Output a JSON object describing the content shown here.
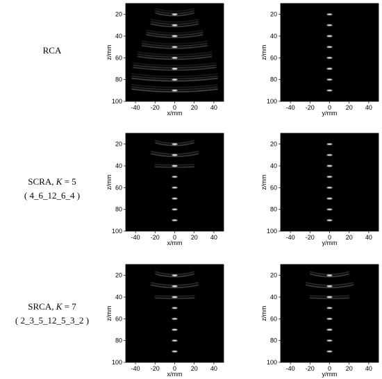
{
  "rows": [
    {
      "method": "RCA",
      "k_label": "",
      "k_value": "",
      "config": ""
    },
    {
      "method": "SCRA, ",
      "k_label": "K",
      "k_value": " = 5",
      "config": "( 4_6_12_6_4 )"
    },
    {
      "method": "SRCA, ",
      "k_label": "K",
      "k_value": " = 7",
      "config": "( 2_3_5_12_5_3_2 )"
    }
  ],
  "chart_data": [
    {
      "type": "heatmap",
      "panel": "RCA x-z",
      "xlabel": "x/mm",
      "ylabel": "z/mm",
      "xlim": [
        -50,
        50
      ],
      "ylim": [
        100,
        10
      ],
      "x_ticks": [
        -40,
        -20,
        0,
        20,
        40
      ],
      "y_ticks": [
        20,
        40,
        60,
        80,
        100
      ],
      "colormap": "gray",
      "background": "black",
      "focal_points_z": [
        20,
        30,
        40,
        50,
        60,
        70,
        80,
        90
      ],
      "image_pattern": "curved arc sidelobes at every depth"
    },
    {
      "type": "heatmap",
      "panel": "RCA y-z",
      "xlabel": "y/mm",
      "ylabel": "z/mm",
      "xlim": [
        -50,
        50
      ],
      "ylim": [
        100,
        10
      ],
      "x_ticks": [
        -40,
        -20,
        0,
        20,
        40
      ],
      "y_ticks": [
        20,
        40,
        60,
        80,
        100
      ],
      "colormap": "gray",
      "background": "black",
      "focal_points_z": [
        20,
        30,
        40,
        50,
        60,
        70,
        80,
        90
      ],
      "image_pattern": "compact points"
    },
    {
      "type": "heatmap",
      "panel": "SCRA K=5 x-z",
      "xlabel": "x/mm",
      "ylabel": "z/mm",
      "xlim": [
        -50,
        50
      ],
      "ylim": [
        100,
        10
      ],
      "x_ticks": [
        -40,
        -20,
        0,
        20,
        40
      ],
      "y_ticks": [
        20,
        40,
        60,
        80,
        100
      ],
      "colormap": "gray",
      "background": "black",
      "focal_points_z": [
        20,
        30,
        40,
        50,
        60,
        70,
        80,
        90
      ],
      "image_pattern": "arcs only at shallow depths"
    },
    {
      "type": "heatmap",
      "panel": "SCRA K=5 y-z",
      "xlabel": "y/mm",
      "ylabel": "z/mm",
      "xlim": [
        -50,
        50
      ],
      "ylim": [
        100,
        10
      ],
      "x_ticks": [
        -40,
        -20,
        0,
        20,
        40
      ],
      "y_ticks": [
        20,
        40,
        60,
        80,
        100
      ],
      "colormap": "gray",
      "background": "black",
      "focal_points_z": [
        20,
        30,
        40,
        50,
        60,
        70,
        80,
        90
      ],
      "image_pattern": "compact points"
    },
    {
      "type": "heatmap",
      "panel": "SRCA K=7 x-z",
      "xlabel": "x/mm",
      "ylabel": "z/mm",
      "xlim": [
        -50,
        50
      ],
      "ylim": [
        100,
        10
      ],
      "x_ticks": [
        -40,
        -20,
        0,
        20,
        40
      ],
      "y_ticks": [
        20,
        40,
        60,
        80,
        100
      ],
      "colormap": "gray",
      "background": "black",
      "focal_points_z": [
        20,
        30,
        40,
        50,
        60,
        70,
        80,
        90
      ],
      "image_pattern": "arcs only at shallow depths"
    },
    {
      "type": "heatmap",
      "panel": "SRCA K=7 y-z",
      "xlabel": "y/mm",
      "ylabel": "z/mm",
      "xlim": [
        -50,
        50
      ],
      "ylim": [
        100,
        10
      ],
      "x_ticks": [
        -40,
        -20,
        0,
        20,
        40
      ],
      "y_ticks": [
        20,
        40,
        60,
        80,
        100
      ],
      "colormap": "gray",
      "background": "black",
      "focal_points_z": [
        20,
        30,
        40,
        50,
        60,
        70,
        80,
        90
      ],
      "image_pattern": "arcs only at shallow depths"
    }
  ]
}
